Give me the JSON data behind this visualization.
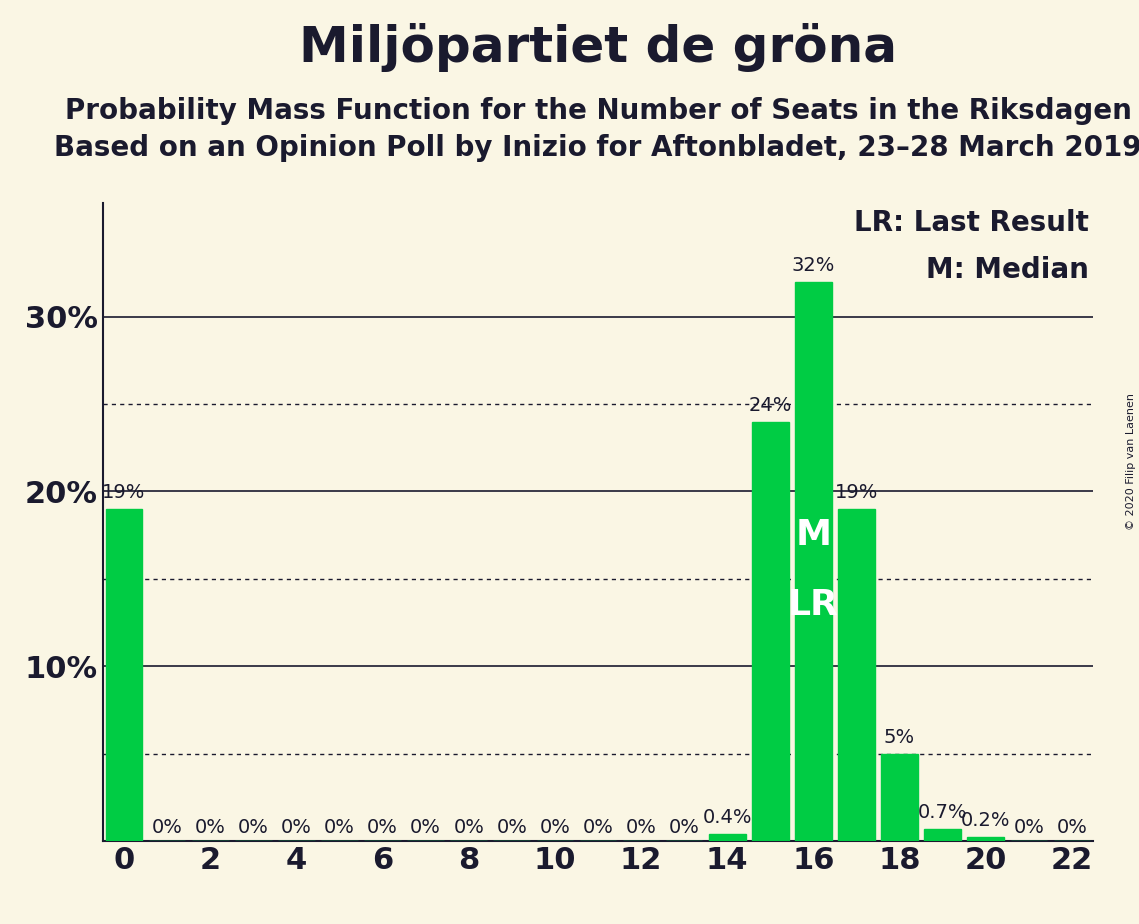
{
  "title": "Miljöpartiet de gröna",
  "subtitle1": "Probability Mass Function for the Number of Seats in the Riksdagen",
  "subtitle2": "Based on an Opinion Poll by Inizio for Aftonbladet, 23–28 March 2019",
  "copyright": "© 2020 Filip van Laenen",
  "seats": [
    0,
    1,
    2,
    3,
    4,
    5,
    6,
    7,
    8,
    9,
    10,
    11,
    12,
    13,
    14,
    15,
    16,
    17,
    18,
    19,
    20,
    21,
    22
  ],
  "probabilities": [
    0.19,
    0.0,
    0.0,
    0.0,
    0.0,
    0.0,
    0.0,
    0.0,
    0.0,
    0.0,
    0.0,
    0.0,
    0.0,
    0.0,
    0.004,
    0.24,
    0.32,
    0.19,
    0.05,
    0.007,
    0.002,
    0.0,
    0.0
  ],
  "bar_color": "#00cc44",
  "background_color": "#faf6e4",
  "text_color": "#1a1a2e",
  "median": 16,
  "last_result": 16,
  "xlim": [
    -0.5,
    22.5
  ],
  "ylim": [
    0,
    0.365
  ],
  "solid_gridlines": [
    0.0,
    0.1,
    0.2,
    0.3
  ],
  "dotted_gridlines": [
    0.05,
    0.15,
    0.25
  ],
  "ytick_positions": [
    0.1,
    0.2,
    0.3
  ],
  "ytick_labels": [
    "10%",
    "20%",
    "30%"
  ],
  "tick_fontsize": 22,
  "title_fontsize": 36,
  "subtitle_fontsize": 20,
  "bar_label_fontsize": 14,
  "legend_fontsize": 20,
  "ml_fontsize": 26,
  "bar_label_fmt": {
    "0": "19%",
    "1": "0%",
    "2": "0%",
    "3": "0%",
    "4": "0%",
    "5": "0%",
    "6": "0%",
    "7": "0%",
    "8": "0%",
    "9": "0%",
    "10": "0%",
    "11": "0%",
    "12": "0%",
    "13": "0%",
    "14": "0.4%",
    "15": "24%",
    "16": "32%",
    "17": "19%",
    "18": "5%",
    "19": "0.7%",
    "20": "0.2%",
    "21": "0%",
    "22": "0%"
  }
}
